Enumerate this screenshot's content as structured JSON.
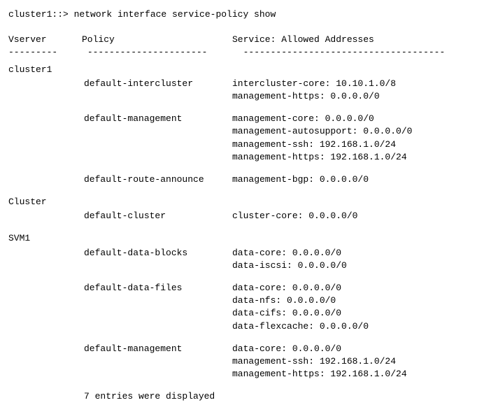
{
  "prompt": "cluster1::> network interface service-policy show",
  "headers": {
    "vserver": "Vserver",
    "policy": "Policy",
    "service": "Service: Allowed Addresses"
  },
  "dashes": {
    "vserver": "---------",
    "policy": "----------------------",
    "service": "-------------------------------------"
  },
  "vservers": [
    {
      "name": "cluster1",
      "policies": [
        {
          "name": "default-intercluster",
          "services": [
            "intercluster-core: 10.10.1.0/8",
            "management-https: 0.0.0.0/0"
          ]
        },
        {
          "name": "default-management",
          "services": [
            "management-core: 0.0.0.0/0",
            "management-autosupport: 0.0.0.0/0",
            "management-ssh: 192.168.1.0/24",
            "management-https: 192.168.1.0/24"
          ]
        },
        {
          "name": "default-route-announce",
          "services": [
            "management-bgp: 0.0.0.0/0"
          ]
        }
      ]
    },
    {
      "name": "Cluster",
      "policies": [
        {
          "name": "default-cluster",
          "services": [
            "cluster-core: 0.0.0.0/0"
          ]
        }
      ]
    },
    {
      "name": "SVM1",
      "policies": [
        {
          "name": "default-data-blocks",
          "services": [
            "data-core: 0.0.0.0/0",
            "data-iscsi: 0.0.0.0/0"
          ]
        },
        {
          "name": "default-data-files",
          "services": [
            "data-core: 0.0.0.0/0",
            "data-nfs: 0.0.0.0/0",
            "data-cifs: 0.0.0.0/0",
            "data-flexcache: 0.0.0.0/0"
          ]
        },
        {
          "name": "default-management",
          "services": [
            "data-core: 0.0.0.0/0",
            "management-ssh: 192.168.1.0/24",
            "management-https: 192.168.1.0/24"
          ]
        }
      ]
    }
  ],
  "footer": "7 entries were displayed"
}
